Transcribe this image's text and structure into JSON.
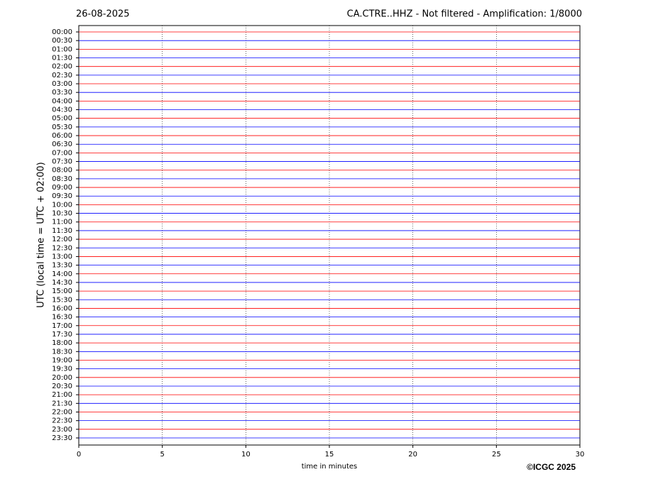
{
  "chart_data": {
    "type": "helicorder",
    "date": "26-08-2025",
    "title": "CA.CTRE..HHZ - Not filtered - Amplification: 1/8000",
    "ylabel": "UTC (local time = UTC + 02:00)",
    "xlabel": "time in minutes",
    "copyright": "©ICGC 2025",
    "xlim": [
      0,
      30
    ],
    "xticks": [
      0,
      5,
      10,
      15,
      20,
      25,
      30
    ],
    "grid": true,
    "colors": [
      "#ff0000",
      "#0000ff"
    ],
    "categories": [
      "00:00",
      "00:30",
      "01:00",
      "01:30",
      "02:00",
      "02:30",
      "03:00",
      "03:30",
      "04:00",
      "04:30",
      "05:00",
      "05:30",
      "06:00",
      "06:30",
      "07:00",
      "07:30",
      "08:00",
      "08:30",
      "09:00",
      "09:30",
      "10:00",
      "10:30",
      "11:00",
      "11:30",
      "12:00",
      "12:30",
      "13:00",
      "13:30",
      "14:00",
      "14:30",
      "15:00",
      "15:30",
      "16:00",
      "16:30",
      "17:00",
      "17:30",
      "18:00",
      "18:30",
      "19:00",
      "19:30",
      "20:00",
      "20:30",
      "21:00",
      "21:30",
      "22:00",
      "22:30",
      "23:00",
      "23:30"
    ]
  }
}
